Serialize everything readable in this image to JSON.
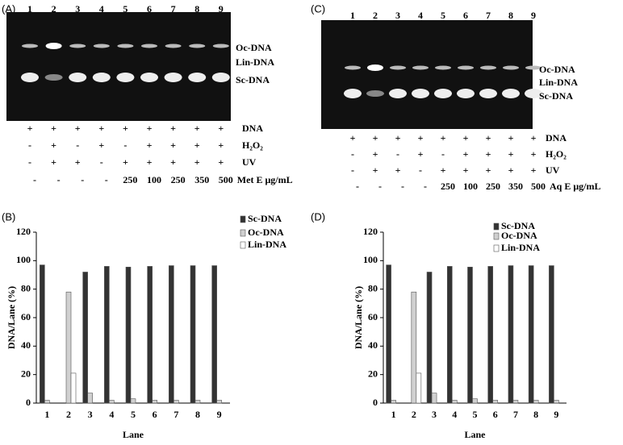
{
  "gels": [
    {
      "label": "(A)",
      "lanes": [
        "1",
        "2",
        "3",
        "4",
        "5",
        "6",
        "7",
        "8",
        "9"
      ],
      "bands": [
        "Oc-DNA",
        "Lin-DNA",
        "Sc-DNA"
      ],
      "rows": [
        {
          "name": "DNA",
          "marks": [
            "+",
            "+",
            "+",
            "+",
            "+",
            "+",
            "+",
            "+",
            "+"
          ]
        },
        {
          "name": "H₂O₂",
          "marks": [
            "-",
            "+",
            "-",
            "+",
            "-",
            "+",
            "+",
            "+",
            "+"
          ]
        },
        {
          "name": "UV",
          "marks": [
            "-",
            "+",
            "+",
            "-",
            "+",
            "+",
            "+",
            "+",
            "+"
          ]
        },
        {
          "name": "Met E μg/mL",
          "marks": [
            "-",
            "-",
            "-",
            "-",
            "250",
            "100",
            "250",
            "350",
            "500"
          ]
        }
      ]
    },
    {
      "label": "(C)",
      "lanes": [
        "1",
        "2",
        "3",
        "4",
        "5",
        "6",
        "7",
        "8",
        "9"
      ],
      "bands": [
        "Oc-DNA",
        "Lin-DNA",
        "Sc-DNA"
      ],
      "rows": [
        {
          "name": "DNA",
          "marks": [
            "+",
            "+",
            "+",
            "+",
            "+",
            "+",
            "+",
            "+",
            "+"
          ]
        },
        {
          "name": "H₂O₂",
          "marks": [
            "-",
            "+",
            "-",
            "+",
            "-",
            "+",
            "+",
            "+",
            "+"
          ]
        },
        {
          "name": "UV",
          "marks": [
            "-",
            "+",
            "+",
            "-",
            "+",
            "+",
            "+",
            "+",
            "+"
          ]
        },
        {
          "name": "Aq E μg/mL",
          "marks": [
            "-",
            "-",
            "-",
            "-",
            "250",
            "100",
            "250",
            "350",
            "500"
          ]
        }
      ]
    }
  ],
  "chart_data": [
    {
      "type": "bar",
      "label": "(B)",
      "x_label": "Lane",
      "y_label": "DNA/Lane (%)",
      "categories": [
        "1",
        "2",
        "3",
        "4",
        "5",
        "6",
        "7",
        "8",
        "9"
      ],
      "series": [
        {
          "name": "Sc-DNA",
          "color": "#333333",
          "values": [
            97,
            0,
            92,
            96,
            95.5,
            96,
            96.5,
            96.5,
            96.5
          ]
        },
        {
          "name": "Oc-DNA",
          "color": "#d0d0d0",
          "values": [
            2,
            78,
            7,
            2,
            3,
            2,
            2,
            2,
            2
          ]
        },
        {
          "name": "Lin-DNA",
          "color": "#ffffff",
          "values": [
            0,
            21,
            0,
            0,
            0,
            0,
            0,
            0,
            0
          ]
        }
      ],
      "ylim": [
        0,
        120
      ],
      "yticks": [
        0,
        20,
        40,
        60,
        80,
        100,
        120
      ]
    },
    {
      "type": "bar",
      "label": "(D)",
      "x_label": "Lane",
      "y_label": "DNA/Lane (%)",
      "categories": [
        "1",
        "2",
        "3",
        "4",
        "5",
        "6",
        "7",
        "8",
        "9"
      ],
      "series": [
        {
          "name": "Sc-DNA",
          "color": "#333333",
          "values": [
            97,
            0,
            92,
            96,
            95.5,
            96,
            96.5,
            96.5,
            96.5
          ]
        },
        {
          "name": "Oc-DNA",
          "color": "#d0d0d0",
          "values": [
            2,
            78,
            7,
            2,
            3,
            2,
            2,
            2,
            2
          ]
        },
        {
          "name": "Lin-DNA",
          "color": "#ffffff",
          "values": [
            0,
            21,
            0,
            0,
            0,
            0,
            0,
            0,
            0
          ]
        }
      ],
      "ylim": [
        0,
        120
      ],
      "yticks": [
        0,
        20,
        40,
        60,
        80,
        100,
        120
      ]
    }
  ]
}
